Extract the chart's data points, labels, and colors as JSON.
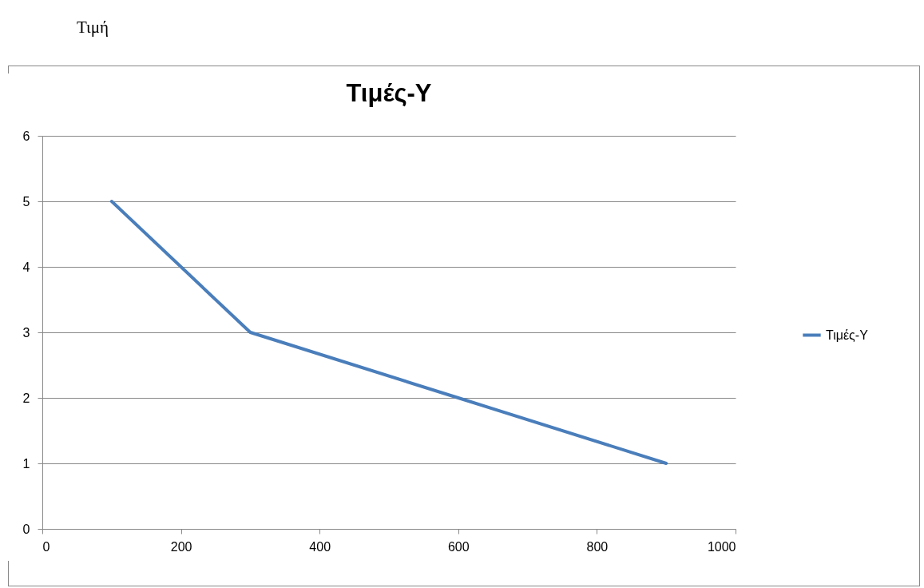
{
  "chart_data": {
    "type": "line",
    "title": "Τιμές-Y",
    "annotations": [
      "Τιμή"
    ],
    "x": [
      100,
      300,
      600,
      900
    ],
    "series": [
      {
        "name": "Τιμές-Y",
        "color": "#4a7ebb",
        "values": [
          5,
          3,
          2,
          1
        ]
      }
    ],
    "xlim": [
      0,
      1000
    ],
    "xticks": [
      0,
      200,
      400,
      600,
      800,
      1000
    ],
    "ylim": [
      0,
      6
    ],
    "yticks": [
      0,
      1,
      2,
      3,
      4,
      5,
      6
    ],
    "grid": "y",
    "legend": "right",
    "marker": "none",
    "line_style": "solid"
  }
}
